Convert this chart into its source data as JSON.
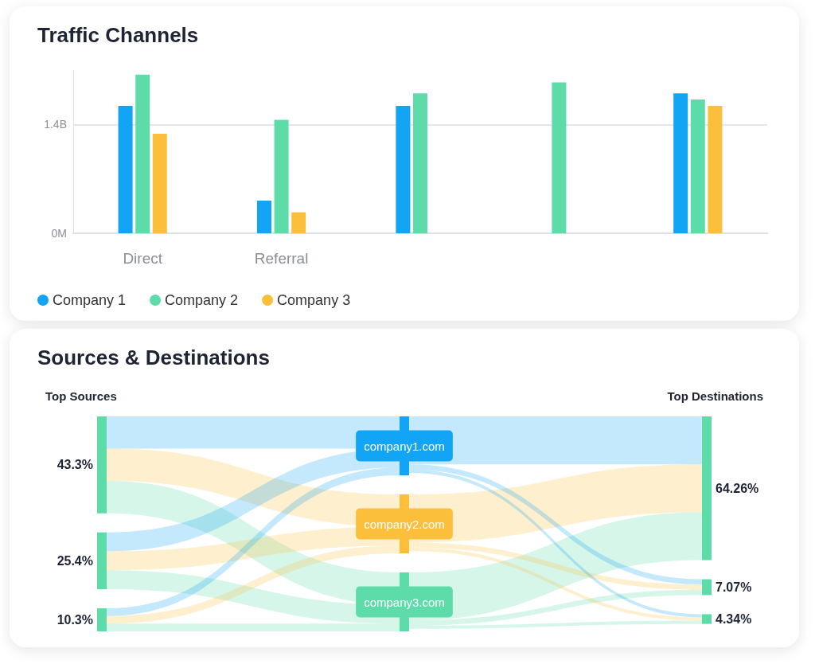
{
  "chart_data": [
    {
      "type": "bar",
      "title": "Traffic Channels",
      "categories": [
        "Direct",
        "Referral",
        null,
        null,
        null
      ],
      "series": [
        {
          "name": "Company 1",
          "color": "#12a4f5",
          "values": [
            1.64,
            0.42,
            1.64,
            null,
            1.8
          ]
        },
        {
          "name": "Company 2",
          "color": "#5ddcaa",
          "values": [
            2.04,
            1.46,
            1.8,
            1.94,
            1.72
          ]
        },
        {
          "name": "Company 3",
          "color": "#fbbf3c",
          "values": [
            1.28,
            0.27,
            null,
            null,
            1.64
          ]
        }
      ],
      "ylim": [
        0,
        2.1
      ],
      "yticks": [
        {
          "value": 0,
          "label": "0M"
        },
        {
          "value": 1.4,
          "label": "1.4B"
        }
      ],
      "grid": "y",
      "legend": "bottom"
    },
    {
      "type": "other",
      "title": "Sources & Destinations",
      "categories": [
        "company1.com",
        "company2.com",
        "company3.com"
      ],
      "colors": [
        "#12a4f5",
        "#fbbf3c",
        "#5ddcaa"
      ],
      "series": [
        {
          "name": "Top Sources",
          "values": [
            43.3,
            25.4,
            10.3
          ],
          "value_labels": [
            "43.3%",
            "25.4%",
            "10.3%"
          ]
        },
        {
          "name": "Top Destinations",
          "values": [
            64.26,
            7.07,
            4.34
          ],
          "value_labels": [
            "64.26%",
            "7.07%",
            "4.34%"
          ]
        }
      ]
    }
  ]
}
